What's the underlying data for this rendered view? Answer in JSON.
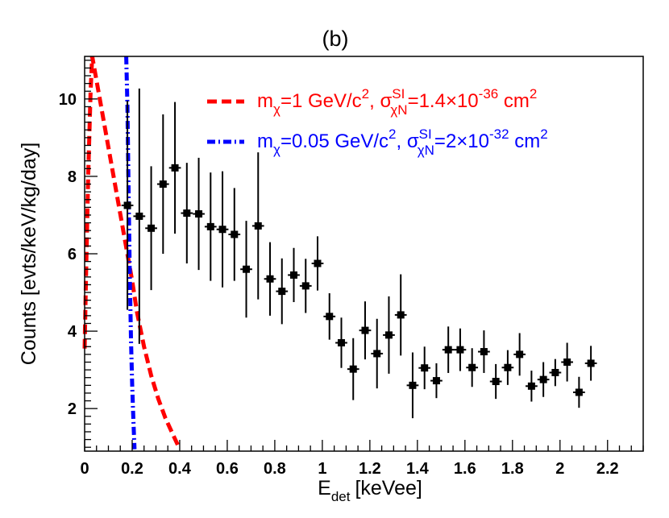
{
  "chart_data": {
    "type": "scatter",
    "panel_label": "(b)",
    "xlabel": {
      "main": "E",
      "sub": "det",
      "unit": "[keVee]"
    },
    "ylabel": "Counts [evts/keV/kg/day]",
    "xlim": [
      0,
      2.35
    ],
    "ylim": [
      0.9,
      11.1
    ],
    "xticks": [
      0,
      0.2,
      0.4,
      0.6,
      0.8,
      1,
      1.2,
      1.4,
      1.6,
      1.8,
      2,
      2.2
    ],
    "xtick_labels": [
      "0",
      "0.2",
      "0.4",
      "0.6",
      "0.8",
      "1",
      "1.2",
      "1.4",
      "1.6",
      "1.8",
      "2",
      "2.2"
    ],
    "yticks": [
      2,
      4,
      6,
      8,
      10
    ],
    "ytick_labels": [
      "2",
      "4",
      "6",
      "8",
      "10"
    ],
    "grid": false,
    "legend_position": "top-right",
    "legend": [
      {
        "name": "curve-1gev",
        "color": "#ff0000",
        "style": "dashed",
        "m_prefix": "m",
        "m_sub": "χ",
        "m_text": "=1 GeV/c",
        "m_exp": "2",
        "sep": ", ",
        "sigma": "σ",
        "sigma_sup": "SI",
        "sigma_sub": "χN",
        "value_text": "=1.4×10",
        "value_exp": "-36",
        "unit_text": " cm",
        "unit_exp": "2"
      },
      {
        "name": "curve-005gev",
        "color": "#0000ff",
        "style": "dash-dot",
        "m_prefix": "m",
        "m_sub": "χ",
        "m_text": "=0.05 GeV/c",
        "m_exp": "2",
        "sep": ", ",
        "sigma": "σ",
        "sigma_sup": "SI",
        "sigma_sub": "χN",
        "value_text": "=2×10",
        "value_exp": "-32",
        "unit_text": " cm",
        "unit_exp": "2"
      }
    ],
    "data_series": {
      "name": "Data",
      "color": "#000000",
      "x_err": 0.025,
      "points": [
        {
          "x": 0.18,
          "y": 7.25,
          "err": 2.7
        },
        {
          "x": 0.23,
          "y": 6.97,
          "err": 3.3
        },
        {
          "x": 0.28,
          "y": 6.66,
          "err": 1.6
        },
        {
          "x": 0.33,
          "y": 7.8,
          "err": 1.8
        },
        {
          "x": 0.38,
          "y": 8.22,
          "err": 1.7
        },
        {
          "x": 0.43,
          "y": 7.05,
          "err": 1.3
        },
        {
          "x": 0.48,
          "y": 7.03,
          "err": 1.45
        },
        {
          "x": 0.53,
          "y": 6.7,
          "err": 1.4
        },
        {
          "x": 0.58,
          "y": 6.63,
          "err": 1.5
        },
        {
          "x": 0.63,
          "y": 6.5,
          "err": 1.2
        },
        {
          "x": 0.68,
          "y": 5.6,
          "err": 1.25
        },
        {
          "x": 0.73,
          "y": 6.72,
          "err": 1.9
        },
        {
          "x": 0.78,
          "y": 5.35,
          "err": 0.95
        },
        {
          "x": 0.83,
          "y": 5.03,
          "err": 0.85
        },
        {
          "x": 0.88,
          "y": 5.45,
          "err": 0.7
        },
        {
          "x": 0.93,
          "y": 5.17,
          "err": 0.7
        },
        {
          "x": 0.98,
          "y": 5.75,
          "err": 0.7
        },
        {
          "x": 1.03,
          "y": 4.38,
          "err": 0.6
        },
        {
          "x": 1.08,
          "y": 3.7,
          "err": 0.65
        },
        {
          "x": 1.13,
          "y": 3.02,
          "err": 0.8
        },
        {
          "x": 1.18,
          "y": 4.02,
          "err": 0.75
        },
        {
          "x": 1.23,
          "y": 3.42,
          "err": 0.9
        },
        {
          "x": 1.28,
          "y": 3.9,
          "err": 1.0
        },
        {
          "x": 1.33,
          "y": 4.42,
          "err": 1.05
        },
        {
          "x": 1.38,
          "y": 2.6,
          "err": 0.85
        },
        {
          "x": 1.43,
          "y": 3.05,
          "err": 0.55
        },
        {
          "x": 1.48,
          "y": 2.72,
          "err": 0.45
        },
        {
          "x": 1.53,
          "y": 3.52,
          "err": 0.6
        },
        {
          "x": 1.58,
          "y": 3.52,
          "err": 0.55
        },
        {
          "x": 1.63,
          "y": 3.06,
          "err": 0.5
        },
        {
          "x": 1.68,
          "y": 3.47,
          "err": 0.55
        },
        {
          "x": 1.73,
          "y": 2.7,
          "err": 0.45
        },
        {
          "x": 1.78,
          "y": 3.06,
          "err": 0.45
        },
        {
          "x": 1.83,
          "y": 3.4,
          "err": 0.55
        },
        {
          "x": 1.88,
          "y": 2.58,
          "err": 0.4
        },
        {
          "x": 1.93,
          "y": 2.75,
          "err": 0.45
        },
        {
          "x": 1.98,
          "y": 2.93,
          "err": 0.35
        },
        {
          "x": 2.03,
          "y": 3.2,
          "err": 0.5
        },
        {
          "x": 2.08,
          "y": 2.42,
          "err": 0.4
        },
        {
          "x": 2.13,
          "y": 3.17,
          "err": 0.45
        }
      ]
    },
    "curves": [
      {
        "name": "curve-1gev",
        "color": "#ff0000",
        "style": "dashed",
        "points": [
          [
            0.0,
            3.55
          ],
          [
            0.006,
            5.5
          ],
          [
            0.015,
            8.0
          ],
          [
            0.025,
            10.2
          ],
          [
            0.032,
            11.1
          ],
          [
            0.2,
            5.3
          ],
          [
            0.22,
            4.5
          ],
          [
            0.25,
            3.6
          ],
          [
            0.28,
            2.85
          ],
          [
            0.31,
            2.25
          ],
          [
            0.34,
            1.75
          ],
          [
            0.37,
            1.35
          ],
          [
            0.4,
            0.95
          ]
        ]
      },
      {
        "name": "curve-005gev",
        "color": "#0000ff",
        "style": "dash-dot",
        "points": [
          [
            0.175,
            11.1
          ],
          [
            0.18,
            9.8
          ],
          [
            0.185,
            7.5
          ],
          [
            0.19,
            5.5
          ],
          [
            0.195,
            3.8
          ],
          [
            0.2,
            2.6
          ],
          [
            0.205,
            1.7
          ],
          [
            0.21,
            0.95
          ]
        ]
      }
    ]
  }
}
